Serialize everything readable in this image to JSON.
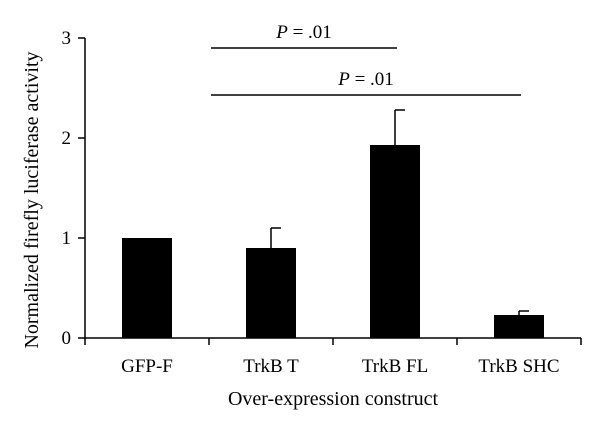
{
  "chart_data": {
    "type": "bar",
    "categories": [
      "GFP-F",
      "TrkB T",
      "TrkB FL",
      "TrkB SHC"
    ],
    "values": [
      1.0,
      0.9,
      1.93,
      0.23
    ],
    "error_upper": [
      0.0,
      0.2,
      0.35,
      0.04
    ],
    "xlabel": "Over-expression construct",
    "ylabel": "Normalized firefly luciferase activity",
    "ylim": [
      0,
      3
    ],
    "yticks": [
      0,
      1,
      2,
      3
    ],
    "bar_color": "#000000",
    "grid": false,
    "legend": "none",
    "annotations": [
      {
        "p_italic": "P",
        "text": " = .01",
        "from": 1,
        "to": 2
      },
      {
        "p_italic": "P",
        "text": " = .01",
        "from": 1,
        "to": 3
      }
    ]
  }
}
